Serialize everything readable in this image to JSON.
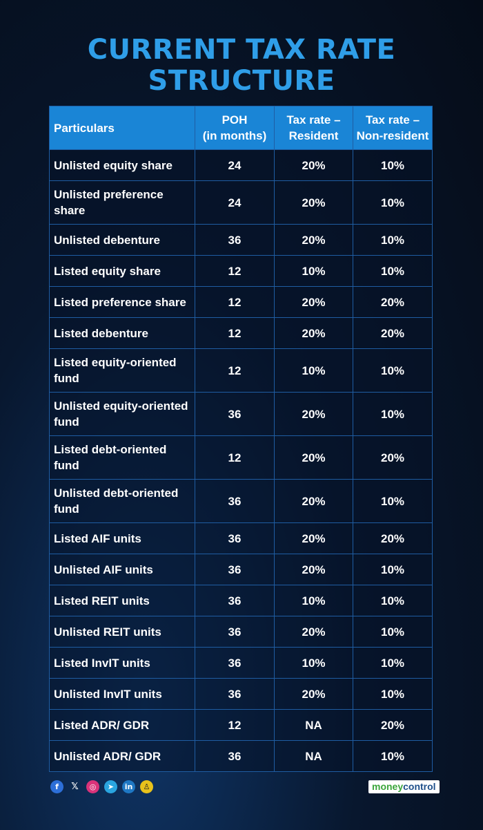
{
  "title_line1": "CURRENT TAX RATE",
  "title_line2": "STRUCTURE",
  "table": {
    "headers": [
      "Particulars",
      "POH\n(in months)",
      "Tax rate –\nResident",
      "Tax rate –\nNon-resident"
    ],
    "rows": [
      {
        "name": "Unlisted equity share",
        "poh": "24",
        "resident": "20%",
        "nonresident": "10%"
      },
      {
        "name": "Unlisted preference share",
        "poh": "24",
        "resident": "20%",
        "nonresident": "10%"
      },
      {
        "name": "Unlisted debenture",
        "poh": "36",
        "resident": "20%",
        "nonresident": "10%"
      },
      {
        "name": "Listed equity share",
        "poh": "12",
        "resident": "10%",
        "nonresident": "10%"
      },
      {
        "name": "Listed preference share",
        "poh": "12",
        "resident": "20%",
        "nonresident": "20%"
      },
      {
        "name": "Listed debenture",
        "poh": "12",
        "resident": "20%",
        "nonresident": "20%"
      },
      {
        "name": "Listed equity-oriented fund",
        "poh": "12",
        "resident": "10%",
        "nonresident": "10%"
      },
      {
        "name": "Unlisted equity-oriented fund",
        "poh": "36",
        "resident": "20%",
        "nonresident": "10%"
      },
      {
        "name": "Listed debt-oriented fund",
        "poh": "12",
        "resident": "20%",
        "nonresident": "20%"
      },
      {
        "name": "Unlisted debt-oriented fund",
        "poh": "36",
        "resident": "20%",
        "nonresident": "10%"
      },
      {
        "name": "Listed AIF units",
        "poh": "36",
        "resident": "20%",
        "nonresident": "20%"
      },
      {
        "name": "Unlisted AIF units",
        "poh": "36",
        "resident": "20%",
        "nonresident": "10%"
      },
      {
        "name": "Listed REIT units",
        "poh": "36",
        "resident": "10%",
        "nonresident": "10%"
      },
      {
        "name": "Unlisted REIT units",
        "poh": "36",
        "resident": "20%",
        "nonresident": "10%"
      },
      {
        "name": "Listed InvIT units",
        "poh": "36",
        "resident": "10%",
        "nonresident": "10%"
      },
      {
        "name": "Unlisted InvIT units",
        "poh": "36",
        "resident": "20%",
        "nonresident": "10%"
      },
      {
        "name": "Listed ADR/ GDR",
        "poh": "12",
        "resident": "NA",
        "nonresident": "20%"
      },
      {
        "name": "Unlisted ADR/ GDR",
        "poh": "36",
        "resident": "NA",
        "nonresident": "10%"
      }
    ]
  },
  "footer": {
    "social_icons": [
      "facebook-icon",
      "x-icon",
      "instagram-icon",
      "telegram-icon",
      "linkedin-icon",
      "snapchat-icon"
    ],
    "logo_part1": "money",
    "logo_part2": "control"
  },
  "colors": {
    "title": "#2f9ee8",
    "header_bg": "#1a85d6",
    "border": "#1f5da3",
    "background": "#08172e"
  }
}
